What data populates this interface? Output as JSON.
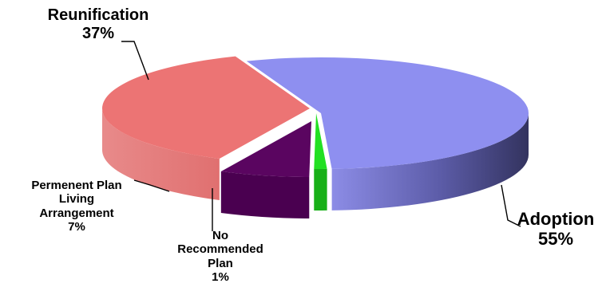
{
  "chart_data": {
    "type": "pie",
    "style": "3d-exploded",
    "title": "",
    "slices": [
      {
        "name": "Adoption",
        "label_lines": [
          "Adoption"
        ],
        "value": 55,
        "pct_label": "55%",
        "color": "#8e8ff0",
        "side_color": "#3a3a70"
      },
      {
        "name": "No Recommended Plan",
        "label_lines": [
          "No",
          "Recommended",
          "Plan"
        ],
        "value": 1,
        "pct_label": "1%",
        "color": "#22e022",
        "side_color": "#18b018"
      },
      {
        "name": "Permenent Plan Living Arrangement",
        "label_lines": [
          "Permenent Plan",
          "Living",
          "Arrangement"
        ],
        "value": 7,
        "pct_label": "7%",
        "color": "#5a0560",
        "side_color": "#4a0050"
      },
      {
        "name": "Reunification",
        "label_lines": [
          "Reunification"
        ],
        "value": 37,
        "pct_label": "37%",
        "color": "#ec7474",
        "side_color": "#e48080"
      }
    ]
  }
}
